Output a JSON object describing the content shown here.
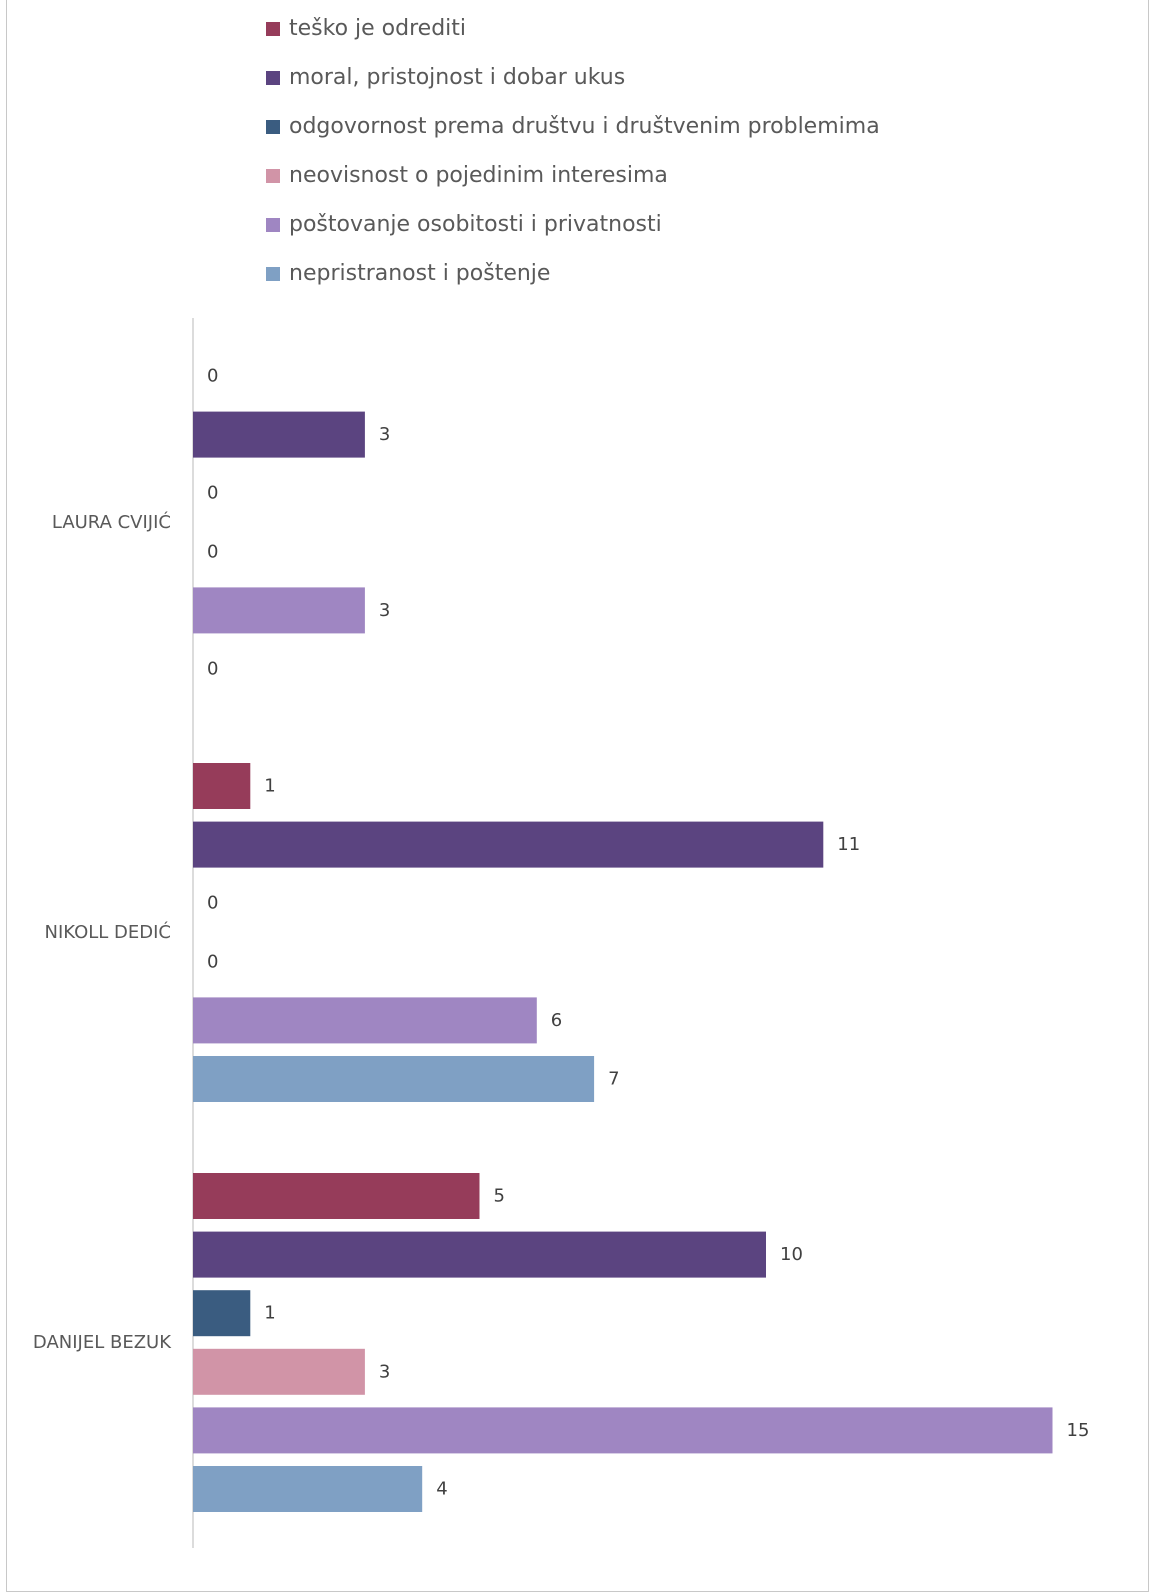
{
  "chart_data": {
    "type": "bar",
    "orientation": "horizontal",
    "categories": [
      "LAURA CVIJIĆ",
      "NIKOLL DEDIĆ",
      "DANIJEL BEZUK"
    ],
    "series": [
      {
        "name": "teško je odrediti",
        "color": "#963c5a",
        "values": [
          0,
          1,
          5
        ]
      },
      {
        "name": "moral, pristojnost i dobar ukus",
        "color": "#5b4480",
        "values": [
          3,
          11,
          10
        ]
      },
      {
        "name": "odgovornost prema društvu i društvenim problemima",
        "color": "#3a5c80",
        "values": [
          0,
          0,
          1
        ]
      },
      {
        "name": "neovisnost o pojedinim interesima",
        "color": "#d194a7",
        "values": [
          0,
          0,
          3
        ]
      },
      {
        "name": "poštovanje osobitosti i privatnosti",
        "color": "#9f86c2",
        "values": [
          3,
          6,
          15
        ]
      },
      {
        "name": "nepristranost i poštenje",
        "color": "#7fa0c4",
        "values": [
          0,
          7,
          4
        ]
      }
    ],
    "data_labels": true,
    "legend_position": "top",
    "grid": false
  }
}
